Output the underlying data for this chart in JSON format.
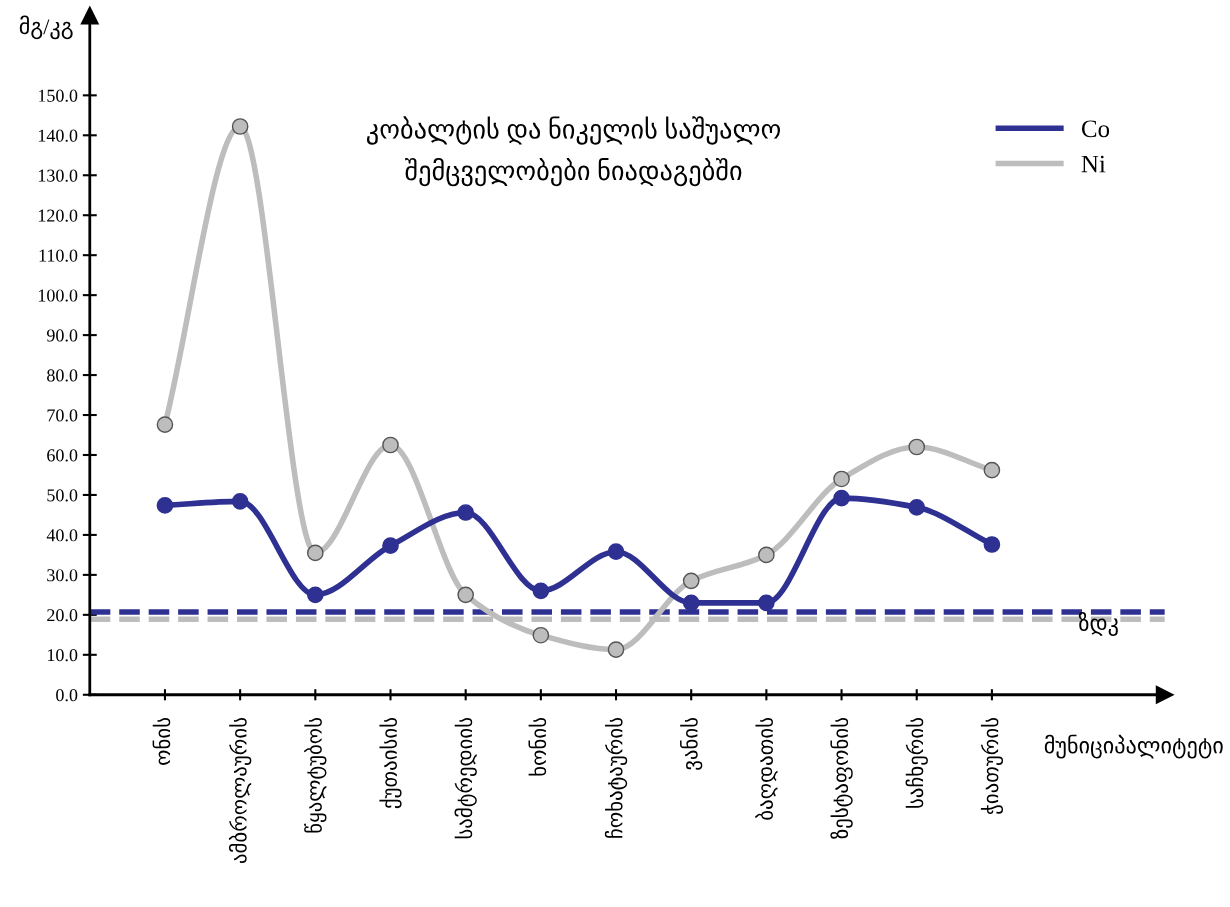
{
  "chart_data": {
    "type": "line",
    "title": "კობალტის და ნიკელის საშუალო\nშემცველობები ნიადაგებში",
    "ylabel": "მგ/კგ",
    "xlabel": "მუნიციპალიტეტი",
    "categories": [
      "ონის",
      "ამბროლაურის",
      "წყალტუბოს",
      "ქუთაისის",
      "სამტრედიის",
      "ხონის",
      "ჩოხატაურის",
      "ვანის",
      "ბაღდათის",
      "ზესტაფონის",
      "საჩხერის",
      "ჭიათურის"
    ],
    "series": [
      {
        "name": "Co",
        "color": "#2e3192",
        "values": [
          47.4,
          48.4,
          25,
          37.3,
          45.6,
          26,
          35.8,
          23,
          23,
          49.2,
          46.9,
          37.6
        ]
      },
      {
        "name": "Ni",
        "color": "#bdbdbd",
        "values": [
          67.6,
          142.2,
          35.5,
          62.5,
          25,
          14.9,
          11.3,
          28.5,
          35,
          54,
          62,
          56.2
        ]
      }
    ],
    "ref_lines": [
      {
        "axis": "y",
        "value": 20.7,
        "label": "ზდკ",
        "color": "#2e3192",
        "line_style": "dashed"
      },
      {
        "axis": "y",
        "value": 18.9,
        "color": "#bdbdbd",
        "line_style": "dashed"
      }
    ],
    "ylim": [
      0,
      170
    ],
    "yticks": [
      {
        "value": 0,
        "label": "0.0"
      },
      {
        "value": 10,
        "label": "10.0"
      },
      {
        "value": 20,
        "label": "20.0"
      },
      {
        "value": 30,
        "label": "30.0"
      },
      {
        "value": 40,
        "label": "40.0"
      },
      {
        "value": 50,
        "label": "50.0"
      },
      {
        "value": 60,
        "label": "60.0"
      },
      {
        "value": 70,
        "label": "70.0"
      },
      {
        "value": 80,
        "label": "80.0"
      },
      {
        "value": 90,
        "label": "90.0"
      },
      {
        "value": 100,
        "label": "100.0"
      },
      {
        "value": 110,
        "label": "110.0"
      },
      {
        "value": 120,
        "label": "120.0"
      },
      {
        "value": 130,
        "label": "130.0"
      },
      {
        "value": 140,
        "label": "140.0"
      },
      {
        "value": 150,
        "label": "150.0"
      }
    ],
    "marker": "circle",
    "line_style": "solid",
    "legend": "top right",
    "grid": false
  }
}
